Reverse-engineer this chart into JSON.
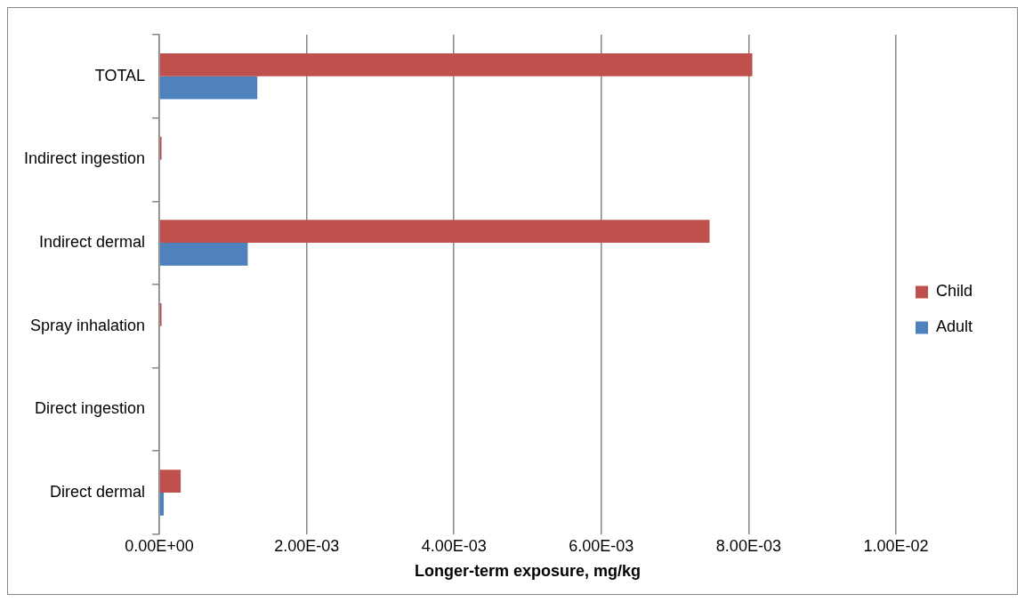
{
  "chart_data": {
    "type": "bar",
    "orientation": "horizontal",
    "xlabel": "Longer-term exposure, mg/kg",
    "categories": [
      "TOTAL",
      "Indirect ingestion",
      "Indirect dermal",
      "Spray inhalation",
      "Direct ingestion",
      "Direct dermal"
    ],
    "series": [
      {
        "name": "Child",
        "color": "#c0504d",
        "values": [
          0.00805,
          3e-05,
          0.00747,
          3e-05,
          0,
          0.00029
        ]
      },
      {
        "name": "Adult",
        "color": "#4f81bd",
        "values": [
          0.00133,
          0,
          0.0012,
          0,
          0,
          6e-05
        ]
      }
    ],
    "xlim": [
      0,
      0.01
    ],
    "xticks": [
      {
        "value": 0,
        "label": "0.00E+00"
      },
      {
        "value": 0.002,
        "label": "2.00E-03"
      },
      {
        "value": 0.004,
        "label": "4.00E-03"
      },
      {
        "value": 0.006,
        "label": "6.00E-03"
      },
      {
        "value": 0.008,
        "label": "8.00E-03"
      },
      {
        "value": 0.01,
        "label": "1.00E-02"
      }
    ],
    "grid": "x",
    "legend": "right"
  }
}
